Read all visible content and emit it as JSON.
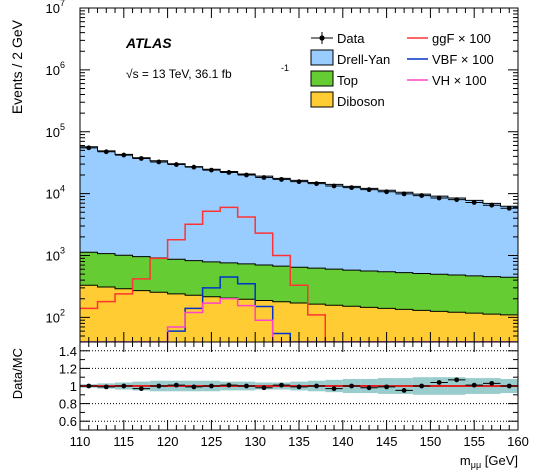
{
  "chart_data": [
    {
      "type": "area",
      "panel": "main",
      "ylabel": "Events / 2 GeV",
      "yscale": "log",
      "ylim": [
        40,
        10000000
      ],
      "xlim": [
        110,
        160
      ],
      "y_tick_labels": [
        "10",
        "10",
        "10",
        "10",
        "10",
        "10",
        "10"
      ],
      "y_tick_exponents": [
        "2",
        "3",
        "4",
        "5",
        "6",
        "7"
      ],
      "y_tick_values": [
        100,
        1000,
        10000,
        100000,
        1000000,
        10000000
      ],
      "experiment_label": "ATLAS",
      "energy_label": "√s = 13 TeV, 36.1 fb",
      "energy_label_exp": "-1",
      "x_bins": [
        110,
        112,
        114,
        116,
        118,
        120,
        122,
        124,
        126,
        128,
        130,
        132,
        134,
        136,
        138,
        140,
        142,
        144,
        146,
        148,
        150,
        152,
        154,
        156,
        158,
        160
      ],
      "stack": [
        {
          "name": "Diboson",
          "color": "#ffcc33",
          "values": [
            330,
            310,
            290,
            270,
            255,
            240,
            228,
            215,
            205,
            196,
            187,
            179,
            171,
            164,
            157,
            151,
            145,
            140,
            135,
            130,
            125,
            121,
            117,
            113,
            110
          ]
        },
        {
          "name": "Top",
          "color": "#66cc33",
          "values": [
            800,
            760,
            720,
            690,
            660,
            630,
            600,
            575,
            555,
            535,
            515,
            495,
            475,
            460,
            445,
            430,
            418,
            405,
            393,
            382,
            372,
            362,
            352,
            343,
            335
          ]
        },
        {
          "name": "Drell-Yan",
          "color": "#99ccff",
          "values": [
            56000,
            48000,
            42000,
            37000,
            33000,
            29500,
            26500,
            24000,
            22000,
            20000,
            18500,
            17000,
            15700,
            14500,
            13500,
            12500,
            11600,
            10800,
            10000,
            9300,
            8600,
            8000,
            7300,
            6500,
            5800
          ]
        }
      ],
      "data_points": {
        "name": "Data",
        "values": [
          55000,
          47500,
          42000,
          37000,
          32500,
          29500,
          26800,
          24000,
          22000,
          20000,
          18200,
          17000,
          15600,
          14500,
          13300,
          12500,
          11600,
          10700,
          9900,
          9300,
          8500,
          8000,
          7200,
          6500,
          5800
        ]
      },
      "signals": [
        {
          "name": "ggF × 100",
          "color": "#ff3333",
          "values": [
            140,
            180,
            240,
            420,
            900,
            1800,
            3200,
            5200,
            6000,
            4200,
            2300,
            1000,
            330,
            110,
            30,
            10,
            5,
            3,
            2,
            1,
            1,
            1,
            1,
            1,
            1
          ]
        },
        {
          "name": "VBF × 100",
          "color": "#0033cc",
          "values": [
            1,
            1,
            1,
            5,
            20,
            60,
            140,
            300,
            450,
            350,
            150,
            55,
            15,
            5,
            2,
            1,
            1,
            1,
            1,
            1,
            1,
            1,
            1,
            1,
            1
          ]
        },
        {
          "name": "VH × 100",
          "color": "#ff44cc",
          "values": [
            1,
            1,
            2,
            8,
            30,
            70,
            120,
            170,
            200,
            155,
            90,
            40,
            15,
            5,
            2,
            1,
            1,
            1,
            1,
            1,
            1,
            1,
            1,
            1,
            1
          ]
        }
      ],
      "legend": [
        "Data",
        "Drell-Yan",
        "Top",
        "Diboson",
        "ggF × 100",
        "VBF × 100",
        "VH × 100"
      ],
      "legend_placement": "top-right"
    },
    {
      "type": "scatter",
      "panel": "ratio",
      "ylabel": "Data/MC",
      "xlabel": "m",
      "xlabel_sub": "μμ",
      "xlabel_unit": " [GeV]",
      "ylim": [
        0.5,
        1.5
      ],
      "xlim": [
        110,
        160
      ],
      "y_tick_labels": [
        "0.6",
        "0.8",
        "1",
        "1.2",
        "1.4"
      ],
      "y_tick_values": [
        0.6,
        0.8,
        1.0,
        1.2,
        1.4
      ],
      "x_tick_labels": [
        "110",
        "115",
        "120",
        "125",
        "130",
        "135",
        "140",
        "145",
        "150",
        "155",
        "160"
      ],
      "x_tick_values": [
        110,
        115,
        120,
        125,
        130,
        135,
        140,
        145,
        150,
        155,
        160
      ],
      "x": [
        111,
        113,
        115,
        117,
        119,
        121,
        123,
        125,
        127,
        129,
        131,
        133,
        135,
        137,
        139,
        141,
        143,
        145,
        147,
        149,
        151,
        153,
        155,
        157,
        159
      ],
      "values": [
        1.0,
        0.99,
        1.0,
        0.97,
        1.0,
        1.01,
        0.99,
        1.0,
        1.01,
        1.0,
        0.98,
        1.01,
        0.99,
        1.0,
        0.97,
        1.0,
        0.98,
        0.99,
        0.95,
        1.0,
        1.04,
        1.07,
        1.01,
        1.03,
        1.0
      ],
      "syst_band": [
        0.02,
        0.03,
        0.04,
        0.05,
        0.06,
        0.06,
        0.06,
        0.06,
        0.05,
        0.05,
        0.04,
        0.04,
        0.05,
        0.06,
        0.07,
        0.08,
        0.08,
        0.09,
        0.09,
        0.1,
        0.1,
        0.1,
        0.09,
        0.09,
        0.08
      ],
      "band_color": "#99cccc",
      "reference_line_color": "#dd2222",
      "dotted_lines": [
        0.6,
        0.8,
        1.2,
        1.4
      ],
      "grid": false
    }
  ]
}
